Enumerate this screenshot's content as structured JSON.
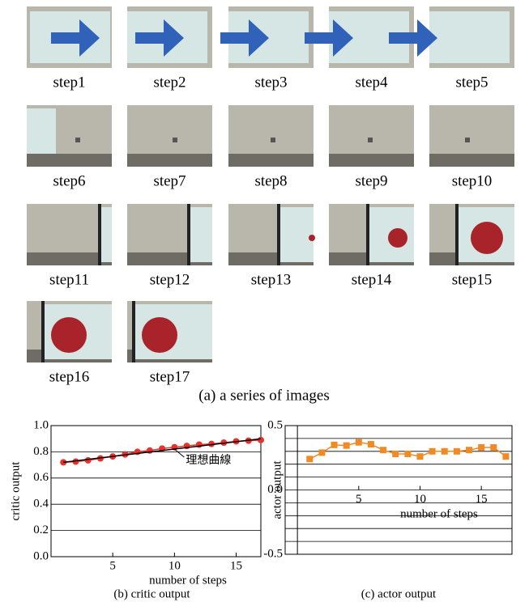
{
  "figure": {
    "images": [
      {
        "label": "step1"
      },
      {
        "label": "step2"
      },
      {
        "label": "step3"
      },
      {
        "label": "step4"
      },
      {
        "label": "step5"
      },
      {
        "label": "step6"
      },
      {
        "label": "step7"
      },
      {
        "label": "step8"
      },
      {
        "label": "step9"
      },
      {
        "label": "step10"
      },
      {
        "label": "step11"
      },
      {
        "label": "step12"
      },
      {
        "label": "step13"
      },
      {
        "label": "step14"
      },
      {
        "label": "step15"
      },
      {
        "label": "step16"
      },
      {
        "label": "step17"
      }
    ],
    "caption": "(a) a series of images"
  },
  "chart_data": [
    {
      "type": "line",
      "caption": "(b) critic output",
      "xlabel": "number of steps",
      "ylabel": "critic output",
      "annotation": "理想曲線",
      "xlim": [
        0,
        17
      ],
      "xticks": [
        5,
        10,
        15
      ],
      "ylim": [
        0,
        1
      ],
      "yticks": [
        {
          "value": 0,
          "label": "0.0"
        },
        0.2,
        0.4,
        0.6,
        0.8,
        {
          "value": 1,
          "label": "1.0"
        }
      ],
      "grid": true,
      "series": [
        {
          "color": "#e8312a",
          "marker": "circle",
          "x": [
            1,
            2,
            3,
            4,
            5,
            6,
            7,
            8,
            9,
            10,
            11,
            12,
            13,
            14,
            15,
            16,
            17
          ],
          "values": [
            0.72,
            0.725,
            0.735,
            0.75,
            0.765,
            0.78,
            0.8,
            0.81,
            0.825,
            0.835,
            0.845,
            0.855,
            0.86,
            0.87,
            0.88,
            0.885,
            0.89
          ]
        },
        {
          "name": "理想曲線",
          "color": "#000000",
          "x": [
            1,
            17
          ],
          "values": [
            0.72,
            0.9
          ]
        }
      ]
    },
    {
      "type": "line",
      "caption": "(c) actor output",
      "xlabel": "number of steps",
      "ylabel": "actor output",
      "xlim": [
        -1,
        17.5
      ],
      "xticks": [
        5,
        10,
        15
      ],
      "ylim": [
        -0.5,
        0.5
      ],
      "yticks": [
        -0.5,
        {
          "value": 0,
          "label": "0.0"
        },
        0.5
      ],
      "ygrid": [
        -0.4,
        -0.3,
        -0.2,
        -0.1,
        0.1,
        0.2,
        0.3,
        0.4
      ],
      "grid": true,
      "series": [
        {
          "color": "#f08a24",
          "marker": "square",
          "x": [
            1,
            2,
            3,
            4,
            5,
            6,
            7,
            8,
            9,
            10,
            11,
            12,
            13,
            14,
            15,
            16,
            17
          ],
          "values": [
            0.24,
            0.29,
            0.35,
            0.345,
            0.37,
            0.355,
            0.31,
            0.28,
            0.28,
            0.26,
            0.3,
            0.3,
            0.3,
            0.31,
            0.33,
            0.33,
            0.26
          ]
        }
      ]
    }
  ]
}
